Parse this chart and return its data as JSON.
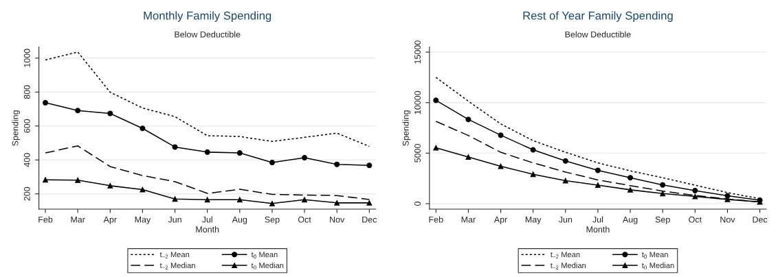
{
  "chart_data": [
    {
      "type": "line",
      "title": "Monthly Family Spending",
      "subtitle": "Below Deductible",
      "xlabel": "Month",
      "ylabel": "Spending",
      "categories": [
        "Feb",
        "Mar",
        "Apr",
        "May",
        "Jun",
        "Jul",
        "Aug",
        "Sep",
        "Oct",
        "Nov",
        "Dec"
      ],
      "ylim": [
        110,
        1065
      ],
      "yticks": [
        200,
        400,
        600,
        800,
        1000
      ],
      "grid": "y",
      "legend": "bottom",
      "series": [
        {
          "name": "t$_{−2}$ Mean",
          "color": "#000000",
          "line_style": "dotted",
          "marker": "none",
          "values": [
            989,
            1036,
            799,
            706,
            655,
            543,
            538,
            509,
            533,
            558,
            480
          ]
        },
        {
          "name": "t$_{0}$ Mean",
          "color": "#000000",
          "line_style": "solid",
          "marker": "circle",
          "values": [
            737,
            691,
            674,
            586,
            476,
            446,
            441,
            385,
            413,
            374,
            368
          ]
        },
        {
          "name": "t$_{−2}$ Median",
          "color": "#000000",
          "line_style": "dashed",
          "marker": "none",
          "values": [
            441,
            483,
            361,
            308,
            272,
            203,
            227,
            197,
            193,
            190,
            167
          ]
        },
        {
          "name": "t$_{0}$ Median",
          "color": "#000000",
          "line_style": "solid",
          "marker": "triangle",
          "values": [
            283,
            281,
            248,
            225,
            170,
            166,
            166,
            143,
            166,
            147,
            147
          ]
        }
      ]
    },
    {
      "type": "line",
      "title": "Rest of Year Family Spending",
      "subtitle": "Below Deductible",
      "xlabel": "Month",
      "ylabel": "Spending",
      "categories": [
        "Feb",
        "Mar",
        "Apr",
        "May",
        "Jun",
        "Jul",
        "Aug",
        "Sep",
        "Oct",
        "Nov",
        "Dec"
      ],
      "ylim": [
        -540,
        15500
      ],
      "yticks": [
        0,
        5000,
        10000,
        15000
      ],
      "grid": "y",
      "legend": "bottom",
      "series": [
        {
          "name": "t$_{−2}$ Mean",
          "color": "#000000",
          "line_style": "dotted",
          "marker": "none",
          "values": [
            12500,
            10150,
            7900,
            6240,
            5090,
            4040,
            3250,
            2570,
            1830,
            1100,
            490
          ]
        },
        {
          "name": "t$_{0}$ Mean",
          "color": "#000000",
          "line_style": "solid",
          "marker": "circle",
          "values": [
            10230,
            8340,
            6780,
            5330,
            4230,
            3300,
            2570,
            1860,
            1300,
            780,
            340
          ]
        },
        {
          "name": "t$_{−2}$ Median",
          "color": "#000000",
          "line_style": "dashed",
          "marker": "none",
          "values": [
            8150,
            6750,
            5090,
            4040,
            3130,
            2350,
            1790,
            1250,
            810,
            460,
            170
          ]
        },
        {
          "name": "t$_{0}$ Median",
          "color": "#000000",
          "line_style": "solid",
          "marker": "triangle",
          "values": [
            5530,
            4620,
            3700,
            2910,
            2280,
            1840,
            1370,
            1000,
            710,
            420,
            170
          ]
        }
      ]
    }
  ]
}
